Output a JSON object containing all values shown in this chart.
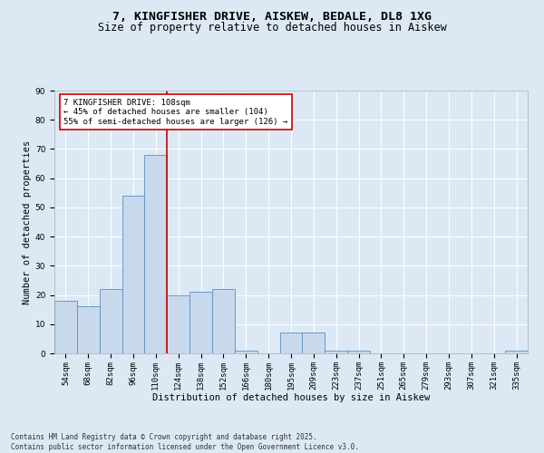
{
  "title": "7, KINGFISHER DRIVE, AISKEW, BEDALE, DL8 1XG",
  "subtitle": "Size of property relative to detached houses in Aiskew",
  "xlabel": "Distribution of detached houses by size in Aiskew",
  "ylabel": "Number of detached properties",
  "bins": [
    "54sqm",
    "68sqm",
    "82sqm",
    "96sqm",
    "110sqm",
    "124sqm",
    "138sqm",
    "152sqm",
    "166sqm",
    "180sqm",
    "195sqm",
    "209sqm",
    "223sqm",
    "237sqm",
    "251sqm",
    "265sqm",
    "279sqm",
    "293sqm",
    "307sqm",
    "321sqm",
    "335sqm"
  ],
  "values": [
    18,
    16,
    22,
    54,
    68,
    20,
    21,
    22,
    1,
    0,
    7,
    7,
    1,
    1,
    0,
    0,
    0,
    0,
    0,
    0,
    1
  ],
  "bar_color": "#c8d9ed",
  "bar_edge_color": "#5a8fc2",
  "vline_x_index": 4,
  "vline_color": "#cc0000",
  "ylim": [
    0,
    90
  ],
  "yticks": [
    0,
    10,
    20,
    30,
    40,
    50,
    60,
    70,
    80,
    90
  ],
  "annotation_box_text": "7 KINGFISHER DRIVE: 108sqm\n← 45% of detached houses are smaller (104)\n55% of semi-detached houses are larger (126) →",
  "background_color": "#dce9f5",
  "plot_bg_color": "#dce9f5",
  "footer": "Contains HM Land Registry data © Crown copyright and database right 2025.\nContains public sector information licensed under the Open Government Licence v3.0.",
  "title_fontsize": 9.5,
  "subtitle_fontsize": 8.5,
  "xlabel_fontsize": 7.5,
  "ylabel_fontsize": 7.5,
  "tick_fontsize": 6.5,
  "annotation_fontsize": 6.5,
  "footer_fontsize": 5.5
}
